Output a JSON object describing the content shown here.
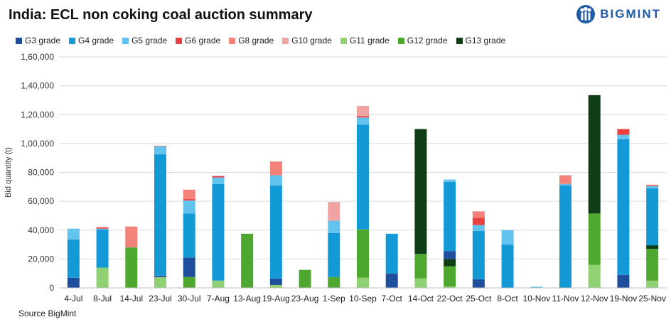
{
  "title": "India: ECL non coking coal auction summary",
  "logo": {
    "text": "BIGMINT",
    "icon": "bigmint-logo-icon"
  },
  "source": "Source BigMint",
  "chart_data": {
    "type": "bar",
    "stacked": true,
    "title": "India: ECL non coking coal auction summary",
    "xlabel": "",
    "ylabel": "Bid quantity (t)",
    "ylim": [
      0,
      160000
    ],
    "yticks": [
      0,
      20000,
      40000,
      60000,
      80000,
      100000,
      120000,
      140000,
      160000
    ],
    "ytick_labels": [
      "0",
      "20,000",
      "40,000",
      "60,000",
      "80,000",
      "1,00,000",
      "1,20,000",
      "1,40,000",
      "1,60,000"
    ],
    "grid": true,
    "legend_position": "top-left",
    "categories": [
      "4-Jul",
      "8-Jul",
      "14-Jul",
      "23-Jul",
      "30-Jul",
      "7-Aug",
      "13-Aug",
      "19-Aug",
      "23-Aug",
      "1-Sep",
      "10-Sep",
      "7-Oct",
      "14-Oct",
      "22-Oct",
      "25-Oct",
      "8-Oct",
      "10-Nov",
      "11-Nov",
      "12-Nov",
      "19-Nov",
      "25-Nov"
    ],
    "series": [
      {
        "name": "G11 grade",
        "color": "#8fd173",
        "values": [
          0,
          14000,
          0,
          7500,
          0,
          5000,
          0,
          2000,
          0,
          0,
          7000,
          0,
          6500,
          1000,
          0,
          0,
          0,
          0,
          16000,
          0,
          5000
        ]
      },
      {
        "name": "G12 grade",
        "color": "#4ea72e",
        "values": [
          0,
          0,
          28000,
          0,
          7500,
          0,
          37500,
          0,
          12500,
          7500,
          33500,
          0,
          17000,
          14000,
          0,
          0,
          0,
          0,
          35500,
          0,
          22000
        ]
      },
      {
        "name": "G13 grade",
        "color": "#0f3d16",
        "values": [
          0,
          0,
          0,
          0,
          0,
          0,
          0,
          0,
          0,
          0,
          0,
          0,
          86500,
          5000,
          0,
          0,
          0,
          0,
          82000,
          0,
          2500
        ]
      },
      {
        "name": "G3 grade",
        "color": "#1f4e9c",
        "values": [
          7000,
          0,
          0,
          1000,
          13500,
          0,
          0,
          4500,
          0,
          0,
          0,
          10000,
          0,
          5500,
          6000,
          0,
          0,
          0,
          0,
          9000,
          0
        ]
      },
      {
        "name": "G4 grade",
        "color": "#139ad6",
        "values": [
          26500,
          26500,
          0,
          84000,
          30500,
          67000,
          0,
          64500,
          0,
          30500,
          72500,
          27500,
          0,
          48000,
          33500,
          30000,
          0,
          71000,
          0,
          94000,
          39500
        ]
      },
      {
        "name": "G5 grade",
        "color": "#62c3ef",
        "values": [
          7500,
          500,
          0,
          5500,
          9000,
          4500,
          0,
          7000,
          0,
          8500,
          5000,
          0,
          0,
          1500,
          4000,
          10000,
          800,
          1000,
          0,
          3000,
          1500
        ]
      },
      {
        "name": "G6 grade",
        "color": "#e94141",
        "values": [
          0,
          1000,
          0,
          0,
          1000,
          1000,
          0,
          0,
          0,
          0,
          1000,
          0,
          0,
          0,
          5000,
          0,
          0,
          0,
          0,
          4000,
          500
        ]
      },
      {
        "name": "G8 grade",
        "color": "#f3837a",
        "values": [
          0,
          0,
          14500,
          500,
          6500,
          0,
          0,
          9500,
          0,
          0,
          0,
          0,
          0,
          0,
          4500,
          0,
          0,
          6000,
          0,
          0,
          500
        ]
      },
      {
        "name": "G10 grade",
        "color": "#f0a3a0",
        "values": [
          0,
          0,
          0,
          0,
          0,
          0,
          0,
          0,
          0,
          13000,
          7000,
          0,
          0,
          0,
          0,
          0,
          0,
          0,
          0,
          0,
          0
        ]
      }
    ],
    "legend_order": [
      "G3 grade",
      "G4 grade",
      "G5 grade",
      "G6 grade",
      "G8 grade",
      "G10 grade",
      "G11 grade",
      "G12 grade",
      "G13 grade"
    ]
  }
}
